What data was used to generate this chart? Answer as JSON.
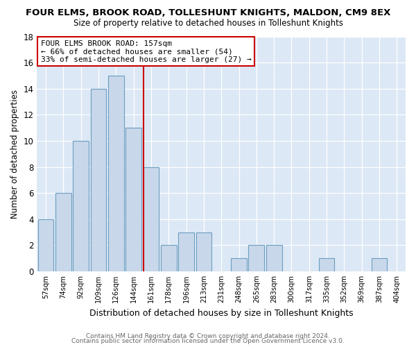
{
  "title": "FOUR ELMS, BROOK ROAD, TOLLESHUNT KNIGHTS, MALDON, CM9 8EX",
  "subtitle": "Size of property relative to detached houses in Tolleshunt Knights",
  "xlabel": "Distribution of detached houses by size in Tolleshunt Knights",
  "ylabel": "Number of detached properties",
  "bin_labels": [
    "57sqm",
    "74sqm",
    "92sqm",
    "109sqm",
    "126sqm",
    "144sqm",
    "161sqm",
    "178sqm",
    "196sqm",
    "213sqm",
    "231sqm",
    "248sqm",
    "265sqm",
    "283sqm",
    "300sqm",
    "317sqm",
    "335sqm",
    "352sqm",
    "369sqm",
    "387sqm",
    "404sqm"
  ],
  "bar_heights": [
    4,
    6,
    10,
    14,
    15,
    11,
    8,
    2,
    3,
    3,
    0,
    1,
    2,
    2,
    0,
    0,
    1,
    0,
    0,
    1,
    0
  ],
  "bar_color": "#c8d8ea",
  "bar_edge_color": "#6b9dc0",
  "highlight_line_color": "#cc0000",
  "annotation_box_color": "#cc0000",
  "annotation_text_line1": "FOUR ELMS BROOK ROAD: 157sqm",
  "annotation_text_line2": "← 66% of detached houses are smaller (54)",
  "annotation_text_line3": "33% of semi-detached houses are larger (27) →",
  "ylim": [
    0,
    18
  ],
  "yticks": [
    0,
    2,
    4,
    6,
    8,
    10,
    12,
    14,
    16,
    18
  ],
  "figure_background": "#ffffff",
  "axes_background": "#dce8f5",
  "grid_color": "#ffffff",
  "footer_line1": "Contains HM Land Registry data © Crown copyright and database right 2024.",
  "footer_line2": "Contains public sector information licensed under the Open Government Licence v3.0."
}
